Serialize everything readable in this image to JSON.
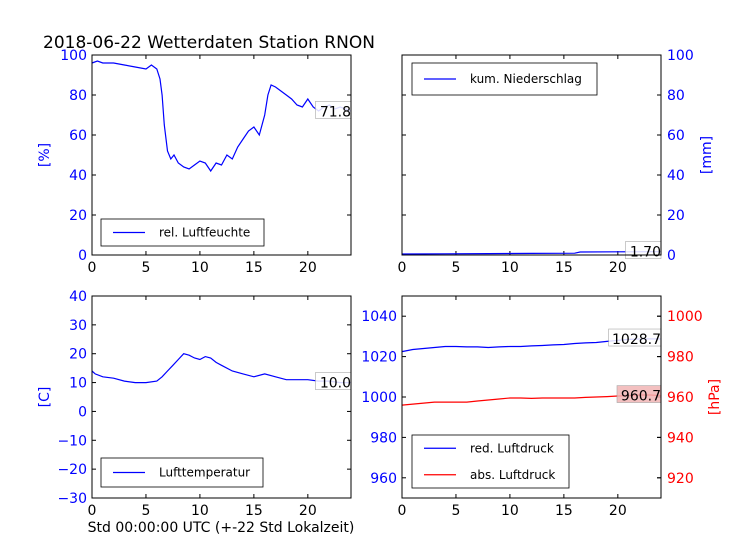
{
  "title": "2018-06-22 Wetterdaten Station RNON",
  "xlabel_bottom": "Std 00:00:00 UTC (+-22 Std Lokalzeit)",
  "colors": {
    "blue": "#0000ff",
    "red": "#ff0000",
    "annot_bg": "#f2b6b6"
  },
  "chart_data": [
    {
      "id": "humidity",
      "type": "line",
      "ylabel": "[%]",
      "ylabel_side": "left",
      "ylabel_color": "#0000ff",
      "xlim": [
        0,
        24
      ],
      "ylim": [
        0,
        100
      ],
      "xticks": [
        0,
        5,
        10,
        15,
        20
      ],
      "yticks": [
        0,
        20,
        40,
        60,
        80,
        100
      ],
      "legend_position": "lower-left",
      "series": [
        {
          "name": "rel. Luftfeuchte",
          "color": "#0000ff",
          "x": [
            0,
            0.5,
            1,
            2,
            3,
            4,
            5,
            5.5,
            6,
            6.3,
            6.5,
            6.7,
            7,
            7.3,
            7.6,
            8,
            8.5,
            9,
            9.5,
            10,
            10.5,
            11,
            11.5,
            12,
            12.5,
            13,
            13.5,
            14,
            14.5,
            15,
            15.5,
            16,
            16.3,
            16.6,
            17,
            17.5,
            18,
            18.5,
            19,
            19.5,
            20,
            20.5,
            21,
            21.5,
            22,
            22.5,
            23,
            23.5,
            24
          ],
          "y": [
            96,
            97,
            96,
            96,
            95,
            94,
            93,
            95,
            93,
            88,
            80,
            65,
            52,
            48,
            50,
            46,
            44,
            43,
            45,
            47,
            46,
            42,
            46,
            45,
            50,
            48,
            54,
            58,
            62,
            64,
            60,
            70,
            80,
            85,
            84,
            82,
            80,
            78,
            75,
            74,
            78,
            74,
            72,
            74,
            75,
            73,
            74,
            73,
            72
          ]
        }
      ],
      "annotation": {
        "text": "71.8",
        "x": 24,
        "y": 71.8
      }
    },
    {
      "id": "rain",
      "type": "line",
      "ylabel": "[mm]",
      "ylabel_side": "right",
      "ylabel_color": "#0000ff",
      "xlim": [
        0,
        24
      ],
      "ylim": [
        0,
        100
      ],
      "xticks": [
        0,
        5,
        10,
        15,
        20
      ],
      "yticks": [
        0,
        20,
        40,
        60,
        80,
        100
      ],
      "legend_position": "upper-left",
      "series": [
        {
          "name": "kum. Niederschlag",
          "color": "#0000ff",
          "x": [
            0,
            4,
            8,
            12,
            16,
            16.5,
            20,
            24
          ],
          "y": [
            0.5,
            0.6,
            0.7,
            0.8,
            0.9,
            1.5,
            1.6,
            1.7
          ]
        }
      ],
      "annotation": {
        "text": "1.70",
        "x": 24,
        "y": 1.7
      }
    },
    {
      "id": "temperature",
      "type": "line",
      "ylabel": "[C]",
      "ylabel_side": "left",
      "ylabel_color": "#0000ff",
      "xlim": [
        0,
        24
      ],
      "ylim": [
        -30,
        40
      ],
      "xticks": [
        0,
        5,
        10,
        15,
        20
      ],
      "yticks": [
        -30,
        -20,
        -10,
        0,
        10,
        20,
        30,
        40
      ],
      "legend_position": "lower-left",
      "series": [
        {
          "name": "Lufttemperatur",
          "color": "#0000ff",
          "x": [
            0,
            0.3,
            1,
            2,
            3,
            4,
            5,
            6,
            6.5,
            7,
            7.5,
            8,
            8.5,
            9,
            9.5,
            10,
            10.5,
            11,
            11.5,
            12,
            13,
            14,
            15,
            16,
            17,
            18,
            19,
            20,
            21,
            22,
            23,
            24
          ],
          "y": [
            14,
            13,
            12,
            11.5,
            10.5,
            10,
            10,
            10.5,
            12,
            14,
            16,
            18,
            20,
            19.5,
            18.5,
            18,
            19,
            18.5,
            17,
            16,
            14,
            13,
            12,
            13,
            12,
            11,
            11,
            11,
            10.5,
            10.5,
            10,
            10
          ]
        }
      ],
      "annotation": {
        "text": "10.0",
        "x": 24,
        "y": 10
      }
    },
    {
      "id": "pressure",
      "type": "line",
      "ylabel": "",
      "ylabel_right": "[hPa]",
      "ylabel_color": "#ff0000",
      "xlim": [
        0,
        24
      ],
      "ylim": [
        950,
        1050
      ],
      "ylim_right": [
        910,
        1010
      ],
      "xticks": [
        0,
        5,
        10,
        15,
        20
      ],
      "yticks": [
        960,
        980,
        1000,
        1020,
        1040
      ],
      "yticks_right": [
        920,
        940,
        960,
        980,
        1000
      ],
      "legend_position": "lower-left",
      "series": [
        {
          "name": "red. Luftdruck",
          "color": "#0000ff",
          "axis": "left",
          "x": [
            0,
            1,
            2,
            3,
            4,
            5,
            6,
            7,
            8,
            9,
            10,
            11,
            12,
            13,
            14,
            15,
            16,
            17,
            18,
            19,
            20,
            21,
            22,
            23,
            24
          ],
          "y": [
            1022.5,
            1023.5,
            1024,
            1024.5,
            1025,
            1025,
            1024.8,
            1024.8,
            1024.5,
            1024.8,
            1025,
            1025,
            1025.3,
            1025.5,
            1025.8,
            1026,
            1026.5,
            1026.8,
            1027,
            1027.5,
            1028,
            1028.5,
            1028.7,
            1028.8,
            1028.7
          ]
        },
        {
          "name": "abs. Luftdruck",
          "color": "#ff0000",
          "axis": "right",
          "x": [
            0,
            1,
            2,
            3,
            4,
            5,
            6,
            7,
            8,
            9,
            10,
            11,
            12,
            13,
            14,
            15,
            16,
            17,
            18,
            19,
            20,
            21,
            22,
            23,
            24
          ],
          "y": [
            956,
            956.5,
            957,
            957.5,
            957.5,
            957.5,
            957.5,
            958,
            958.5,
            959,
            959.5,
            959.5,
            959.3,
            959.5,
            959.5,
            959.5,
            959.5,
            959.8,
            960,
            960.2,
            960.5,
            960.7,
            961,
            961,
            960.7
          ]
        }
      ],
      "annotations": [
        {
          "text": "1028.7",
          "x": 24,
          "y": 1028.7,
          "axis": "left"
        },
        {
          "text": "960.7",
          "x": 24,
          "y": 960.7,
          "axis": "right"
        }
      ]
    }
  ]
}
